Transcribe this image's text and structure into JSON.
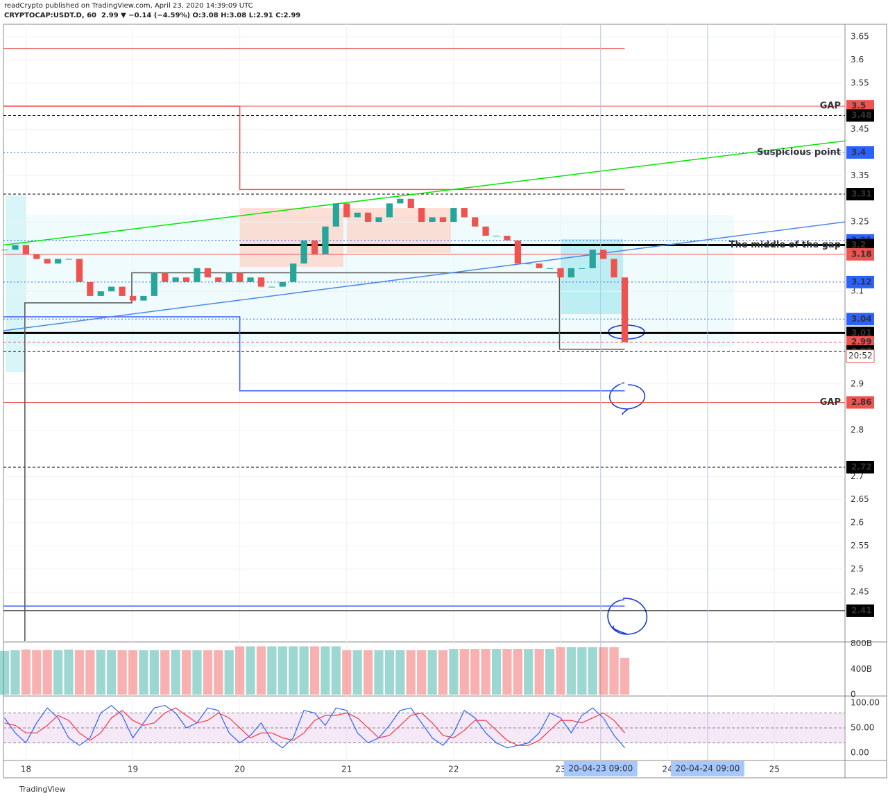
{
  "header": {
    "author": "readCrypto published on TradingView.com, April 23, 2020 14:39:09 UTC",
    "symbol_line": "CRYPTOCAP:USDT.D, 60  2.99 ▼ −0.14 (−4.59%) O:3.08 H:3.08 L:2.91 C:2.99"
  },
  "footer": "TradingView",
  "chart_data": {
    "type": "candlestick",
    "x": [
      17.8,
      17.9,
      18.0,
      18.1,
      18.2,
      18.3,
      18.4,
      18.5,
      18.6,
      18.7,
      18.8,
      18.9,
      19.0,
      19.1,
      19.2,
      19.3,
      19.4,
      19.5,
      19.6,
      19.7,
      19.8,
      19.9,
      20.0,
      20.1,
      20.2,
      20.3,
      20.4,
      20.5,
      20.6,
      20.7,
      20.8,
      20.9,
      21.0,
      21.1,
      21.2,
      21.3,
      21.4,
      21.5,
      21.6,
      21.7,
      21.8,
      21.9,
      22.0,
      22.1,
      22.2,
      22.3,
      22.4,
      22.5,
      22.6,
      22.7,
      22.8,
      22.9,
      23.0,
      23.1,
      23.2,
      23.3,
      23.4,
      23.5,
      23.6
    ],
    "close": [
      3.19,
      3.2,
      3.18,
      3.17,
      3.16,
      3.17,
      3.17,
      3.12,
      3.09,
      3.1,
      3.11,
      3.09,
      3.08,
      3.09,
      3.14,
      3.12,
      3.13,
      3.12,
      3.15,
      3.13,
      3.12,
      3.14,
      3.12,
      3.13,
      3.11,
      3.11,
      3.12,
      3.16,
      3.21,
      3.18,
      3.24,
      3.29,
      3.26,
      3.27,
      3.25,
      3.26,
      3.29,
      3.3,
      3.28,
      3.25,
      3.26,
      3.25,
      3.28,
      3.26,
      3.24,
      3.22,
      3.22,
      3.21,
      3.16,
      3.16,
      3.15,
      3.15,
      3.13,
      3.15,
      3.15,
      3.19,
      3.17,
      3.13,
      2.99
    ],
    "up_color": "#26a69a",
    "down_color": "#ef5350",
    "xlim": [
      17.79,
      25.66
    ],
    "xticks": [
      18,
      19,
      20,
      21,
      22,
      23,
      24,
      25
    ],
    "ylim": [
      2.344,
      3.677
    ],
    "yticks": [
      3.65,
      3.6,
      3.55,
      3.45,
      3.35,
      3.25,
      3.1,
      2.9,
      2.8,
      2.7,
      2.65,
      2.6,
      2.55,
      2.5,
      2.45
    ],
    "price_tags": [
      {
        "value": 3.5,
        "color": "#ef5350",
        "label": "GAP",
        "style": "solid"
      },
      {
        "value": 3.48,
        "color": "#000000",
        "style": "dashed"
      },
      {
        "value": 3.4,
        "color": "#2962ff",
        "label": "Suspicious point",
        "style": "dotted"
      },
      {
        "value": 3.31,
        "color": "#000000",
        "style": "dashed"
      },
      {
        "value": 3.21,
        "color": "#2962ff",
        "style": "dotted"
      },
      {
        "value": 3.2,
        "color": "#000000",
        "label": "The middle of the gap",
        "style": "thick"
      },
      {
        "value": 3.18,
        "color": "#ef5350",
        "style": "solid"
      },
      {
        "value": 3.12,
        "color": "#2962ff",
        "style": "dotted"
      },
      {
        "value": 3.04,
        "color": "#2962ff",
        "style": "dotted"
      },
      {
        "value": 3.01,
        "color": "#000000",
        "style": "thick"
      },
      {
        "value": 2.99,
        "color": "#ef5350",
        "style": "dashed"
      },
      {
        "value": 2.97,
        "color": "#000000",
        "style": "dashed"
      },
      {
        "value": 2.86,
        "color": "#ef5350",
        "label": "GAP",
        "style": "solid"
      },
      {
        "value": 2.72,
        "color": "#000000",
        "style": "dashed"
      },
      {
        "value": 2.41,
        "color": "#000000",
        "style": "solid"
      }
    ],
    "countdown": "20:52",
    "paths": [
      {
        "color": "#ef5350",
        "points": [
          [
            17.79,
            3.625
          ],
          [
            23.6,
            3.625
          ]
        ]
      },
      {
        "color": "#ef5350",
        "points": [
          [
            17.79,
            3.5
          ],
          [
            20,
            3.5
          ],
          [
            20,
            3.32
          ],
          [
            23.6,
            3.32
          ]
        ]
      },
      {
        "color": "#3d5afe",
        "points": [
          [
            17.79,
            3.045
          ],
          [
            20,
            3.045
          ],
          [
            20,
            2.885
          ],
          [
            23.6,
            2.885
          ]
        ]
      },
      {
        "color": "#555555",
        "points": [
          [
            17.99,
            2.344
          ],
          [
            17.99,
            3.075
          ],
          [
            18.99,
            3.075
          ],
          [
            18.99,
            3.14
          ],
          [
            22.99,
            3.14
          ],
          [
            22.99,
            2.975
          ],
          [
            23.6,
            2.975
          ]
        ]
      },
      {
        "color": "#3d5afe",
        "points": [
          [
            17.79,
            2.42
          ],
          [
            23.6,
            2.42
          ]
        ]
      },
      {
        "color": "#00e600",
        "points": [
          [
            17.79,
            3.2
          ],
          [
            25.66,
            3.425
          ]
        ]
      },
      {
        "color": "#4a86e8",
        "points": [
          [
            17.79,
            3.015
          ],
          [
            25.66,
            3.25
          ]
        ]
      }
    ],
    "time_highlights": [
      {
        "value": 23.375,
        "label": "20-04-23  09:00"
      },
      {
        "value": 24.375,
        "label": "20-04-24  09:00"
      }
    ],
    "volume": [
      690,
      700,
      710,
      700,
      705,
      700,
      710,
      700,
      700,
      705,
      700,
      700,
      700,
      700,
      700,
      700,
      705,
      700,
      700,
      700,
      700,
      700,
      760,
      760,
      760,
      760,
      760,
      760,
      760,
      760,
      760,
      760,
      700,
      700,
      700,
      700,
      700,
      700,
      700,
      700,
      700,
      700,
      720,
      720,
      720,
      720,
      720,
      720,
      720,
      720,
      720,
      720,
      750,
      750,
      750,
      750,
      750,
      750,
      580
    ],
    "vol_lim": [
      0,
      830
    ],
    "vol_ticks": [
      {
        "value": 800,
        "label": "800B"
      },
      {
        "value": 400,
        "label": "400B"
      },
      0
    ],
    "stoch_k": [
      70,
      40,
      20,
      60,
      90,
      70,
      30,
      15,
      30,
      80,
      95,
      75,
      30,
      60,
      90,
      95,
      80,
      50,
      60,
      90,
      85,
      40,
      20,
      35,
      60,
      25,
      10,
      30,
      85,
      80,
      55,
      90,
      85,
      40,
      20,
      30,
      55,
      85,
      90,
      60,
      30,
      15,
      40,
      85,
      70,
      40,
      20,
      10,
      15,
      20,
      40,
      80,
      70,
      40,
      75,
      90,
      70,
      35,
      10
    ],
    "stoch_d": [
      60,
      55,
      40,
      40,
      55,
      75,
      65,
      40,
      25,
      40,
      70,
      85,
      65,
      55,
      60,
      80,
      90,
      75,
      60,
      65,
      80,
      70,
      50,
      30,
      40,
      40,
      30,
      25,
      40,
      65,
      75,
      75,
      80,
      70,
      50,
      30,
      35,
      55,
      75,
      80,
      60,
      35,
      30,
      45,
      65,
      65,
      45,
      25,
      15,
      15,
      25,
      45,
      65,
      65,
      60,
      70,
      80,
      65,
      40
    ],
    "stoch_colors": [
      "#2962ff",
      "#f23645"
    ],
    "osc_lim": [
      -15.3,
      111.1
    ],
    "osc_ticks": [
      {
        "value": 100,
        "label": "100.00"
      },
      {
        "value": 50,
        "label": "50.00"
      },
      {
        "value": 0,
        "label": "0.00"
      }
    ],
    "osc_bands": [
      80,
      50,
      20
    ]
  }
}
